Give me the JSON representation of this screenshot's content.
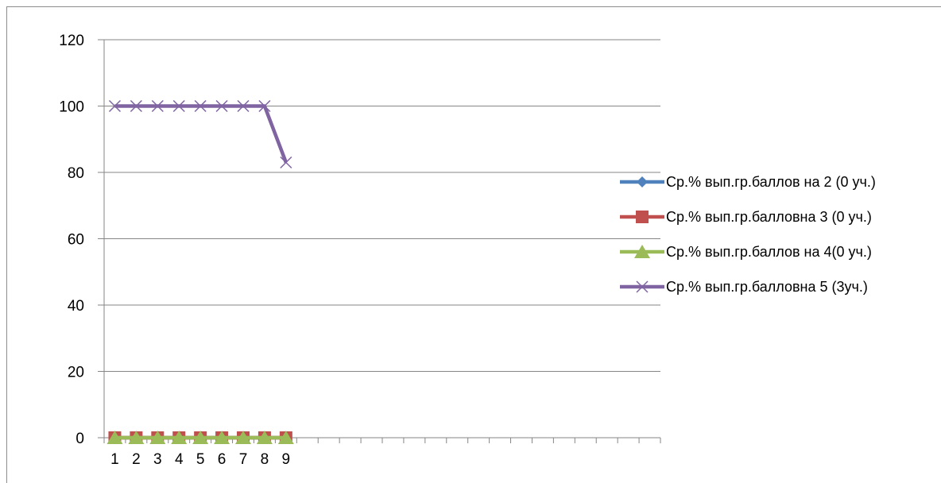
{
  "chart_data": {
    "type": "line",
    "title": "",
    "xlabel": "",
    "ylabel": "",
    "ylim": [
      0,
      120
    ],
    "yticks": [
      0,
      20,
      40,
      60,
      80,
      100,
      120
    ],
    "x_category_count": 26,
    "categories": [
      "1",
      "2",
      "3",
      "4",
      "5",
      "6",
      "7",
      "8",
      "9"
    ],
    "grid": "horizontal major gridlines",
    "legend_position": "right",
    "series": [
      {
        "name": "Ср.% вып.гр.баллов на 2 (0 уч.)",
        "color": "#4f81bd",
        "marker": "diamond",
        "values": [
          0,
          0,
          0,
          0,
          0,
          0,
          0,
          0,
          0
        ]
      },
      {
        "name": "Ср.% вып.гр.балловна 3 (0 уч.)",
        "color": "#c0504d",
        "marker": "square",
        "values": [
          0,
          0,
          0,
          0,
          0,
          0,
          0,
          0,
          0
        ]
      },
      {
        "name": "Ср.% вып.гр.баллов на 4(0 уч.)",
        "color": "#9bbb59",
        "marker": "triangle",
        "values": [
          0,
          0,
          0,
          0,
          0,
          0,
          0,
          0,
          0
        ]
      },
      {
        "name": "Ср.% вып.гр.балловна 5 (3уч.)",
        "color": "#8064a2",
        "marker": "x",
        "values": [
          100,
          100,
          100,
          100,
          100,
          100,
          100,
          100,
          83
        ]
      }
    ]
  }
}
